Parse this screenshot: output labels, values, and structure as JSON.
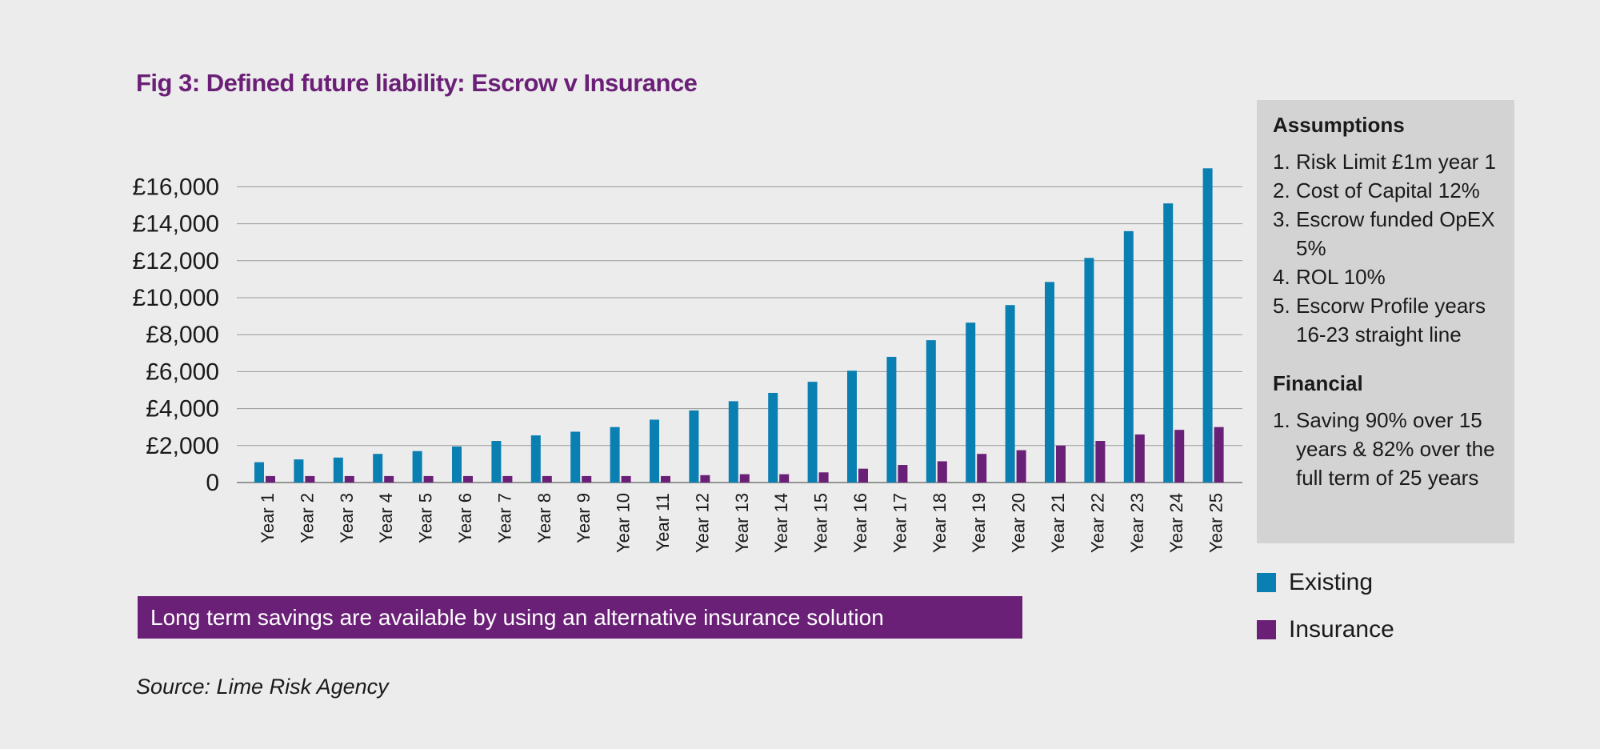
{
  "title": "Fig 3: Defined future liability: Escrow v Insurance",
  "colors": {
    "existing": "#0a7fb1",
    "insurance": "#6b2077",
    "accent": "#6b2077",
    "grid": "#9a9a9a"
  },
  "chart_data": {
    "type": "bar",
    "title": "Fig 3: Defined future liability: Escrow v Insurance",
    "xlabel": "",
    "ylabel": "",
    "ylim": [
      0,
      16000
    ],
    "yticks": [
      "0",
      "£2,000",
      "£4,000",
      "£6,000",
      "£8,000",
      "£10,000",
      "£12,000",
      "£14,000",
      "£16,000"
    ],
    "ytick_values": [
      0,
      2000,
      4000,
      6000,
      8000,
      10000,
      12000,
      14000,
      16000
    ],
    "grid": true,
    "legend_position": "right",
    "categories": [
      "Year 1",
      "Year 2",
      "Year 3",
      "Year 4",
      "Year 5",
      "Year 6",
      "Year 7",
      "Year 8",
      "Year 9",
      "Year 10",
      "Year 11",
      "Year 12",
      "Year 13",
      "Year 14",
      "Year 15",
      "Year 16",
      "Year 17",
      "Year 18",
      "Year 19",
      "Year 20",
      "Year 21",
      "Year 22",
      "Year 23",
      "Year 24",
      "Year 25"
    ],
    "series": [
      {
        "name": "Existing",
        "values": [
          1100,
          1250,
          1350,
          1550,
          1700,
          1950,
          2250,
          2550,
          2750,
          3000,
          3400,
          3900,
          4400,
          4850,
          5450,
          6050,
          6800,
          7700,
          8650,
          9600,
          10850,
          12150,
          13600,
          15100,
          17000
        ]
      },
      {
        "name": "Insurance",
        "values": [
          350,
          350,
          350,
          350,
          350,
          350,
          350,
          350,
          350,
          350,
          350,
          400,
          450,
          450,
          550,
          750,
          950,
          1150,
          1550,
          1750,
          2000,
          2250,
          2600,
          2850,
          3000
        ]
      }
    ]
  },
  "assumptions": {
    "heading": "Assumptions",
    "items": [
      {
        "num": "1.",
        "text": "Risk Limit £1m year 1"
      },
      {
        "num": "2.",
        "text": "Cost of Capital 12%"
      },
      {
        "num": "3.",
        "text": "Escrow funded OpEX 5%"
      },
      {
        "num": "4.",
        "text": "ROL 10%"
      },
      {
        "num": "5.",
        "text": "Escorw Profile years 16-23 straight line"
      }
    ],
    "financial_heading": "Financial",
    "financial_items": [
      {
        "num": "1.",
        "text": "Saving 90% over 15 years & 82% over the full term of 25 years"
      }
    ]
  },
  "legend": {
    "existing": "Existing",
    "insurance": "Insurance"
  },
  "banner": "Long term savings are available by using an alternative insurance solution",
  "source": "Source: Lime Risk Agency"
}
